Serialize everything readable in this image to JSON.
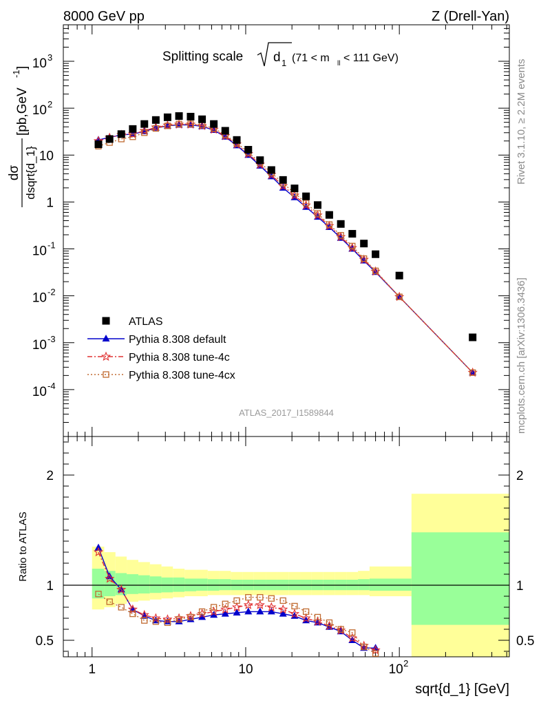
{
  "header": {
    "left": "8000 GeV pp",
    "right": "Z (Drell-Yan)"
  },
  "side_texts": {
    "rivet": "Rivet 3.1.10, ≥ 2.2M events",
    "mcplots": "mcplots.cern.ch [arXiv:1306.3436]"
  },
  "chart_data": [
    {
      "type": "scatter",
      "panel": "main",
      "title_main": "Splitting scale",
      "title_var": "d",
      "title_sub": "1",
      "title_cut": "(71 < m",
      "title_cut_sub": "ll",
      "title_cut_end": " < 111 GeV)",
      "ylabel_num": "dσ",
      "ylabel_den": "dsqrt{d_1}",
      "ylabel_unit": "[pb,GeV",
      "ylabel_unit_sup": "-1",
      "ylabel_unit_end": "]",
      "xscale": "log",
      "yscale": "log",
      "xlim": [
        0.65,
        520
      ],
      "ylim": [
        1e-05,
        6000
      ],
      "yticks": [
        {
          "v": 0.0001,
          "base": "10",
          "exp": "-4"
        },
        {
          "v": 0.001,
          "base": "10",
          "exp": "-3"
        },
        {
          "v": 0.01,
          "base": "10",
          "exp": "-2"
        },
        {
          "v": 0.1,
          "base": "10",
          "exp": "-1"
        },
        {
          "v": 1,
          "base": "1",
          "exp": ""
        },
        {
          "v": 10,
          "base": "10",
          "exp": ""
        },
        {
          "v": 100,
          "base": "10",
          "exp": "2"
        },
        {
          "v": 1000,
          "base": "10",
          "exp": "3"
        }
      ],
      "watermark": "ATLAS_2017_I1589844",
      "legend_position": "lower-left",
      "series": [
        {
          "name": "ATLAS",
          "color": "#000000",
          "marker": "square",
          "x": [
            1.1,
            1.3,
            1.55,
            1.84,
            2.19,
            2.6,
            3.1,
            3.68,
            4.38,
            5.2,
            6.2,
            7.36,
            8.75,
            10.4,
            12.4,
            14.7,
            17.5,
            20.8,
            24.7,
            29.4,
            35.0,
            41.6,
            49.4,
            58.8,
            70.0,
            100.0,
            300.0
          ],
          "values": [
            17,
            22,
            28,
            36,
            46,
            56,
            64,
            68,
            66,
            58,
            46,
            33,
            21,
            13,
            7.8,
            4.8,
            2.95,
            1.95,
            1.32,
            0.86,
            0.53,
            0.34,
            0.21,
            0.13,
            0.077,
            0.027,
            0.0013
          ]
        },
        {
          "name": "Pythia 8.308 default",
          "color": "#0000cc",
          "marker": "triangle",
          "line": "solid",
          "x": [
            1.1,
            1.3,
            1.55,
            1.84,
            2.19,
            2.6,
            3.1,
            3.68,
            4.38,
            5.2,
            6.2,
            7.36,
            8.75,
            10.4,
            12.4,
            14.7,
            17.5,
            20.8,
            24.7,
            29.4,
            35.0,
            41.6,
            49.4,
            58.8,
            70.0,
            100.0,
            300.0
          ],
          "values": [
            21,
            24,
            27,
            28,
            32,
            38,
            42,
            44,
            44,
            41,
            34,
            24.5,
            16,
            10,
            5.9,
            3.5,
            2.0,
            1.25,
            0.78,
            0.48,
            0.29,
            0.17,
            0.1,
            0.056,
            0.032,
            0.0095,
            0.00023
          ]
        },
        {
          "name": "Pythia 8.308 tune-4c",
          "color": "#e03030",
          "marker": "star",
          "line": "dashdot",
          "x": [
            1.1,
            1.3,
            1.55,
            1.84,
            2.19,
            2.6,
            3.1,
            3.68,
            4.38,
            5.2,
            6.2,
            7.36,
            8.75,
            10.4,
            12.4,
            14.7,
            17.5,
            20.8,
            24.7,
            29.4,
            35.0,
            41.6,
            49.4,
            58.8,
            70.0,
            100.0,
            300.0
          ],
          "values": [
            20,
            23.5,
            27,
            28,
            33,
            39,
            43,
            45,
            45,
            42,
            35,
            25.5,
            17,
            10.6,
            6.3,
            3.8,
            2.2,
            1.38,
            0.85,
            0.52,
            0.31,
            0.18,
            0.105,
            0.059,
            0.033,
            0.0095,
            0.00023
          ]
        },
        {
          "name": "Pythia 8.308 tune-4cx",
          "color": "#c06a30",
          "marker": "open-square",
          "line": "dotted",
          "x": [
            1.1,
            1.3,
            1.55,
            1.84,
            2.19,
            2.6,
            3.1,
            3.68,
            4.38,
            5.2,
            6.2,
            7.36,
            8.75,
            10.4,
            12.4,
            14.7,
            17.5,
            20.8,
            24.7,
            29.4,
            35.0,
            41.6,
            49.4,
            58.8,
            70.0,
            100.0,
            300.0
          ],
          "values": [
            15.5,
            18.5,
            22,
            24.5,
            30,
            37,
            42,
            46,
            46,
            44,
            37,
            27,
            18,
            11.5,
            6.9,
            4.2,
            2.5,
            1.55,
            0.95,
            0.57,
            0.33,
            0.195,
            0.115,
            0.062,
            0.034,
            0.0095,
            0.00023
          ]
        }
      ]
    },
    {
      "type": "scatter",
      "panel": "ratio",
      "ylabel": "Ratio to ATLAS",
      "xlabel": "sqrt{d_1} [GeV]",
      "xscale": "log",
      "xlim": [
        0.65,
        520
      ],
      "ylim": [
        0.35,
        2.35
      ],
      "yticks": [
        0.5,
        1,
        2
      ],
      "ytick_labels": [
        "0.5",
        "1",
        "2"
      ],
      "xticks": [
        1,
        10,
        100
      ],
      "xtick_labels": [
        {
          "base": "1",
          "exp": ""
        },
        {
          "base": "10",
          "exp": ""
        },
        {
          "base": "10",
          "exp": "2"
        }
      ],
      "reference_line": 1,
      "bands": {
        "edges": [
          1.0,
          1.2,
          1.42,
          1.68,
          2.0,
          2.38,
          2.83,
          3.36,
          4.0,
          4.76,
          5.66,
          6.73,
          8.0,
          9.51,
          11.3,
          13.5,
          16.0,
          19.0,
          22.6,
          26.9,
          32.0,
          38.1,
          45.3,
          53.8,
          64.0,
          120.0,
          520.0
        ],
        "green_lo": [
          0.88,
          0.9,
          0.91,
          0.92,
          0.925,
          0.93,
          0.935,
          0.94,
          0.945,
          0.95,
          0.95,
          0.955,
          0.955,
          0.955,
          0.955,
          0.955,
          0.955,
          0.955,
          0.955,
          0.955,
          0.955,
          0.955,
          0.955,
          0.955,
          0.95,
          0.64
        ],
        "green_hi": [
          1.15,
          1.13,
          1.11,
          1.1,
          1.09,
          1.08,
          1.07,
          1.07,
          1.06,
          1.06,
          1.055,
          1.055,
          1.05,
          1.05,
          1.05,
          1.05,
          1.05,
          1.05,
          1.05,
          1.05,
          1.05,
          1.05,
          1.05,
          1.055,
          1.06,
          1.48
        ],
        "yellow_lo": [
          0.78,
          0.8,
          0.83,
          0.85,
          0.86,
          0.87,
          0.88,
          0.89,
          0.9,
          0.9,
          0.91,
          0.91,
          0.91,
          0.91,
          0.91,
          0.91,
          0.91,
          0.91,
          0.91,
          0.91,
          0.91,
          0.91,
          0.91,
          0.91,
          0.9,
          0.35
        ],
        "yellow_hi": [
          1.35,
          1.3,
          1.26,
          1.23,
          1.21,
          1.19,
          1.17,
          1.15,
          1.14,
          1.14,
          1.13,
          1.13,
          1.12,
          1.12,
          1.12,
          1.12,
          1.12,
          1.12,
          1.12,
          1.12,
          1.12,
          1.12,
          1.12,
          1.13,
          1.17,
          1.83
        ]
      },
      "series": [
        {
          "name": "Pythia 8.308 default",
          "color": "#0000cc",
          "marker": "triangle",
          "line": "solid",
          "x": [
            1.1,
            1.3,
            1.55,
            1.84,
            2.19,
            2.6,
            3.1,
            3.68,
            4.38,
            5.2,
            6.2,
            7.36,
            8.75,
            10.4,
            12.4,
            14.7,
            17.5,
            20.8,
            24.7,
            29.4,
            35.0,
            41.6,
            49.4,
            58.8,
            70.0
          ],
          "values": [
            1.34,
            1.08,
            0.96,
            0.78,
            0.72,
            0.68,
            0.67,
            0.67,
            0.69,
            0.71,
            0.73,
            0.74,
            0.75,
            0.76,
            0.76,
            0.76,
            0.74,
            0.72,
            0.68,
            0.66,
            0.62,
            0.58,
            0.5,
            0.43,
            0.43
          ]
        },
        {
          "name": "Pythia 8.308 tune-4c",
          "color": "#e03030",
          "marker": "star",
          "line": "dashdot",
          "x": [
            1.1,
            1.3,
            1.55,
            1.84,
            2.19,
            2.6,
            3.1,
            3.68,
            4.38,
            5.2,
            6.2,
            7.36,
            8.75,
            10.4,
            12.4,
            14.7,
            17.5,
            20.8,
            24.7,
            29.4,
            35.0,
            41.6,
            49.4,
            58.8,
            70.0
          ],
          "values": [
            1.3,
            1.06,
            0.96,
            0.78,
            0.73,
            0.7,
            0.69,
            0.7,
            0.72,
            0.74,
            0.76,
            0.78,
            0.8,
            0.82,
            0.82,
            0.8,
            0.78,
            0.74,
            0.7,
            0.67,
            0.63,
            0.59,
            0.52,
            0.45,
            0.41
          ]
        },
        {
          "name": "Pythia 8.308 tune-4cx",
          "color": "#c06a30",
          "marker": "open-square",
          "line": "dotted",
          "x": [
            1.1,
            1.3,
            1.55,
            1.84,
            2.19,
            2.6,
            3.1,
            3.68,
            4.38,
            5.2,
            6.2,
            7.36,
            8.75,
            10.4,
            12.4,
            14.7,
            17.5,
            20.8,
            24.7,
            29.4,
            35.0,
            41.6,
            49.4,
            58.8,
            70.0
          ],
          "values": [
            0.92,
            0.85,
            0.8,
            0.74,
            0.68,
            0.67,
            0.66,
            0.69,
            0.71,
            0.76,
            0.8,
            0.83,
            0.86,
            0.89,
            0.89,
            0.88,
            0.86,
            0.81,
            0.76,
            0.71,
            0.66,
            0.6,
            0.57,
            0.44,
            0.38
          ]
        }
      ]
    }
  ]
}
